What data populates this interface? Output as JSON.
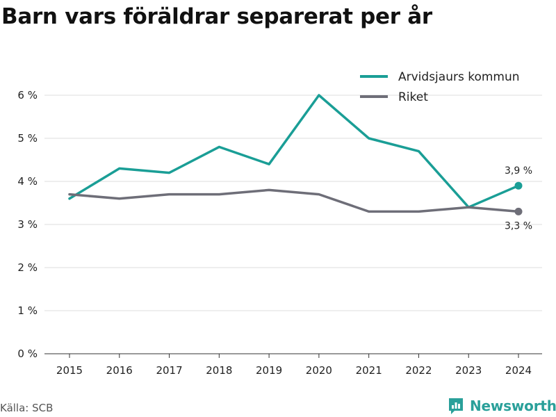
{
  "title": "Barn vars föräldrar separerat per år",
  "source": "Källa: SCB",
  "brand": {
    "name": "Newsworthy",
    "logo_icon": "newsworthy-logo-icon"
  },
  "colors": {
    "Arvidsjaurs kommun": "#1a9e96",
    "Riket": "#6e6e78"
  },
  "chart_data": {
    "type": "line",
    "x": [
      "2015",
      "2016",
      "2017",
      "2018",
      "2019",
      "2020",
      "2021",
      "2022",
      "2023",
      "2024"
    ],
    "series": [
      {
        "name": "Arvidsjaurs kommun",
        "values": [
          3.6,
          4.3,
          4.2,
          4.8,
          4.4,
          6.0,
          5.0,
          4.7,
          3.4,
          3.9
        ]
      },
      {
        "name": "Riket",
        "values": [
          3.7,
          3.6,
          3.7,
          3.7,
          3.8,
          3.7,
          3.3,
          3.3,
          3.4,
          3.3
        ]
      }
    ],
    "ylim": [
      0,
      6
    ],
    "yticks": [
      0,
      1,
      2,
      3,
      4,
      5,
      6
    ],
    "ytick_labels": [
      "0 %",
      "1 %",
      "2 %",
      "3 %",
      "4 %",
      "5 %",
      "6 %"
    ],
    "end_labels": [
      "3,9 %",
      "3,3 %"
    ],
    "grid": true,
    "legend_position": "top-right"
  }
}
